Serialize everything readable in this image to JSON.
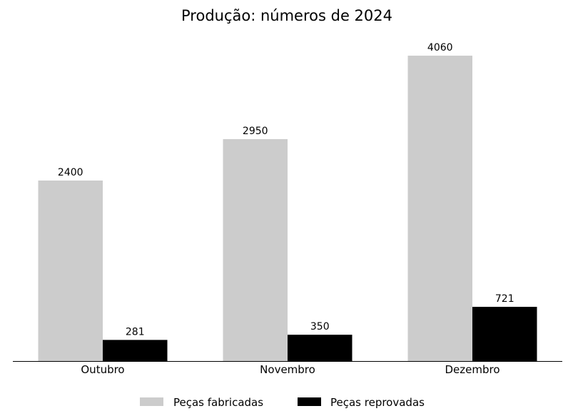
{
  "chart_data": {
    "type": "bar",
    "title": "Produção: números de 2024",
    "categories": [
      "Outubro",
      "Novembro",
      "Dezembro"
    ],
    "series": [
      {
        "name": "Peças fabricadas",
        "color": "#cccccc",
        "values": [
          2400,
          2950,
          4060
        ]
      },
      {
        "name": "Peças reprovadas",
        "color": "#000000",
        "values": [
          281,
          350,
          721
        ]
      }
    ],
    "ylim": [
      0,
      4300
    ],
    "grid": false,
    "legend_position": "bottom-center"
  }
}
